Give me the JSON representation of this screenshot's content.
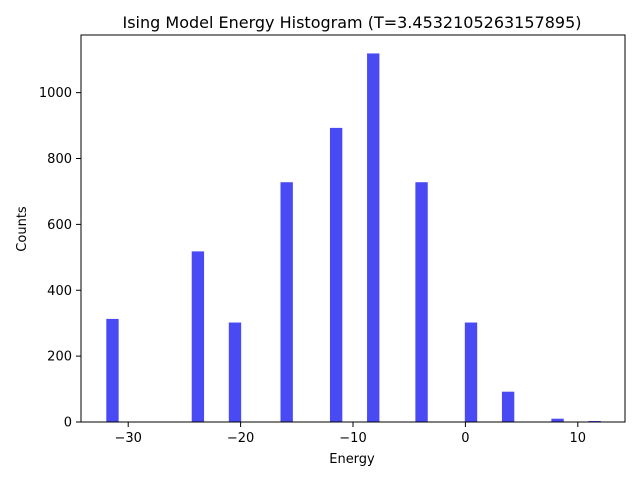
{
  "chart_data": {
    "type": "bar",
    "title": "Ising Model Energy Histogram (T=3.4532105263157895)",
    "xlabel": "Energy",
    "ylabel": "Counts",
    "xlim": [
      -34.2,
      14.2
    ],
    "ylim": [
      0,
      1175
    ],
    "xticks": [
      -30,
      -20,
      -10,
      0,
      10
    ],
    "yticks": [
      0,
      200,
      400,
      600,
      800,
      1000
    ],
    "bar_width": 1.1,
    "grid": false,
    "color": "#4a4af5",
    "series": [
      {
        "x": [
          -31.4,
          -23.8,
          -20.5,
          -15.9,
          -11.5,
          -8.2,
          -3.9,
          0.5,
          3.8,
          8.2,
          11.5
        ],
        "values": [
          313,
          518,
          302,
          728,
          893,
          1119,
          728,
          302,
          92,
          10,
          3
        ]
      }
    ]
  }
}
